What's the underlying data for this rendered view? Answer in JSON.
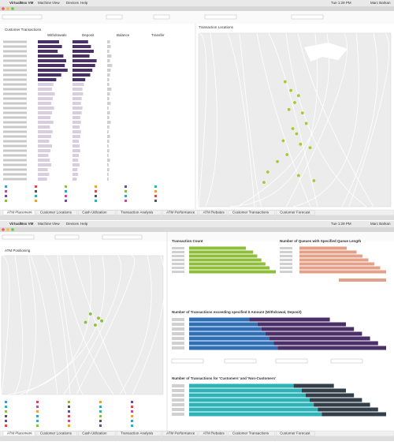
{
  "menu": {
    "app": "VirtualBox VM",
    "items": [
      "Machine",
      "View",
      "Devices",
      "Help"
    ],
    "clock": "Tue 1:28 PM",
    "user": "Marc Barkan"
  },
  "tabs": [
    "ATM Placement",
    "Customer Locations",
    "Cash Utilization",
    "Transaction Analysis",
    "ATM Performance",
    "ATM Rebates",
    "Customer Transactions",
    "Customer Forecast"
  ],
  "top": {
    "left_title": "Customer Transactions",
    "right_title": "Transaction Locations",
    "columns": [
      "Withdrawals",
      "Deposit",
      "Balance",
      "Transfer"
    ],
    "withdrawals": [
      30,
      34,
      28,
      36,
      40,
      38,
      42,
      33,
      26,
      22,
      20,
      24,
      21,
      19,
      23,
      20,
      18,
      22,
      17,
      21,
      19,
      16,
      20,
      18,
      15,
      17,
      19,
      14,
      16,
      13
    ],
    "deposits": [
      22,
      26,
      30,
      24,
      34,
      32,
      28,
      25,
      18,
      16,
      14,
      15,
      13,
      12,
      14,
      13,
      11,
      12,
      10,
      12,
      11,
      9,
      10,
      11,
      9,
      8,
      10,
      7,
      8,
      6
    ],
    "balance": [
      4,
      5,
      3,
      6,
      4,
      7,
      5,
      4,
      3,
      3,
      6,
      4,
      3,
      5,
      2,
      4,
      3,
      5,
      3,
      2,
      4,
      3,
      2,
      3,
      2,
      4,
      2,
      3,
      2,
      2
    ],
    "points": [
      [
        45,
        28
      ],
      [
        48,
        33
      ],
      [
        52,
        36
      ],
      [
        50,
        40
      ],
      [
        47,
        44
      ],
      [
        54,
        46
      ],
      [
        56,
        52
      ],
      [
        49,
        55
      ],
      [
        51,
        58
      ],
      [
        44,
        62
      ],
      [
        53,
        64
      ],
      [
        58,
        66
      ],
      [
        46,
        70
      ],
      [
        41,
        74
      ],
      [
        36,
        80
      ],
      [
        52,
        82
      ],
      [
        60,
        85
      ],
      [
        34,
        86
      ]
    ]
  },
  "bottom": {
    "map_title": "ATM Positioning",
    "points": [
      [
        55,
        42
      ],
      [
        60,
        45
      ],
      [
        52,
        48
      ],
      [
        58,
        50
      ],
      [
        62,
        47
      ]
    ],
    "charts": [
      {
        "title": "Transaction Count",
        "series": [
          {
            "color": "#8fbf3a",
            "values": [
              55,
              62,
              66,
              70,
              74,
              78,
              84
            ]
          }
        ]
      },
      {
        "title": "Number of Queues with Specified Queue Length",
        "series": [
          {
            "color": "#e5a08a",
            "values": [
              48,
              58,
              64,
              70,
              76,
              82,
              88
            ]
          }
        ]
      },
      {
        "title": "Number of Transactions exceeding specified $ Amount (Withdrawal, Deposit)",
        "series": [
          {
            "color": "#2f6fb5",
            "values": [
              30,
              34,
              36,
              38,
              40,
              42,
              44
            ]
          },
          {
            "color": "#4b2f68",
            "values": [
              40,
              44,
              46,
              48,
              50,
              52,
              54
            ]
          }
        ]
      },
      {
        "title": "Number of Transactions for 'Customers' and 'Non-Customers'",
        "series": [
          {
            "color": "#2bb3b8",
            "values": [
              52,
              56,
              58,
              60,
              62,
              64,
              66
            ]
          },
          {
            "color": "#333f48",
            "values": [
              20,
              22,
              24,
              26,
              28,
              30,
              32
            ]
          }
        ]
      }
    ]
  }
}
